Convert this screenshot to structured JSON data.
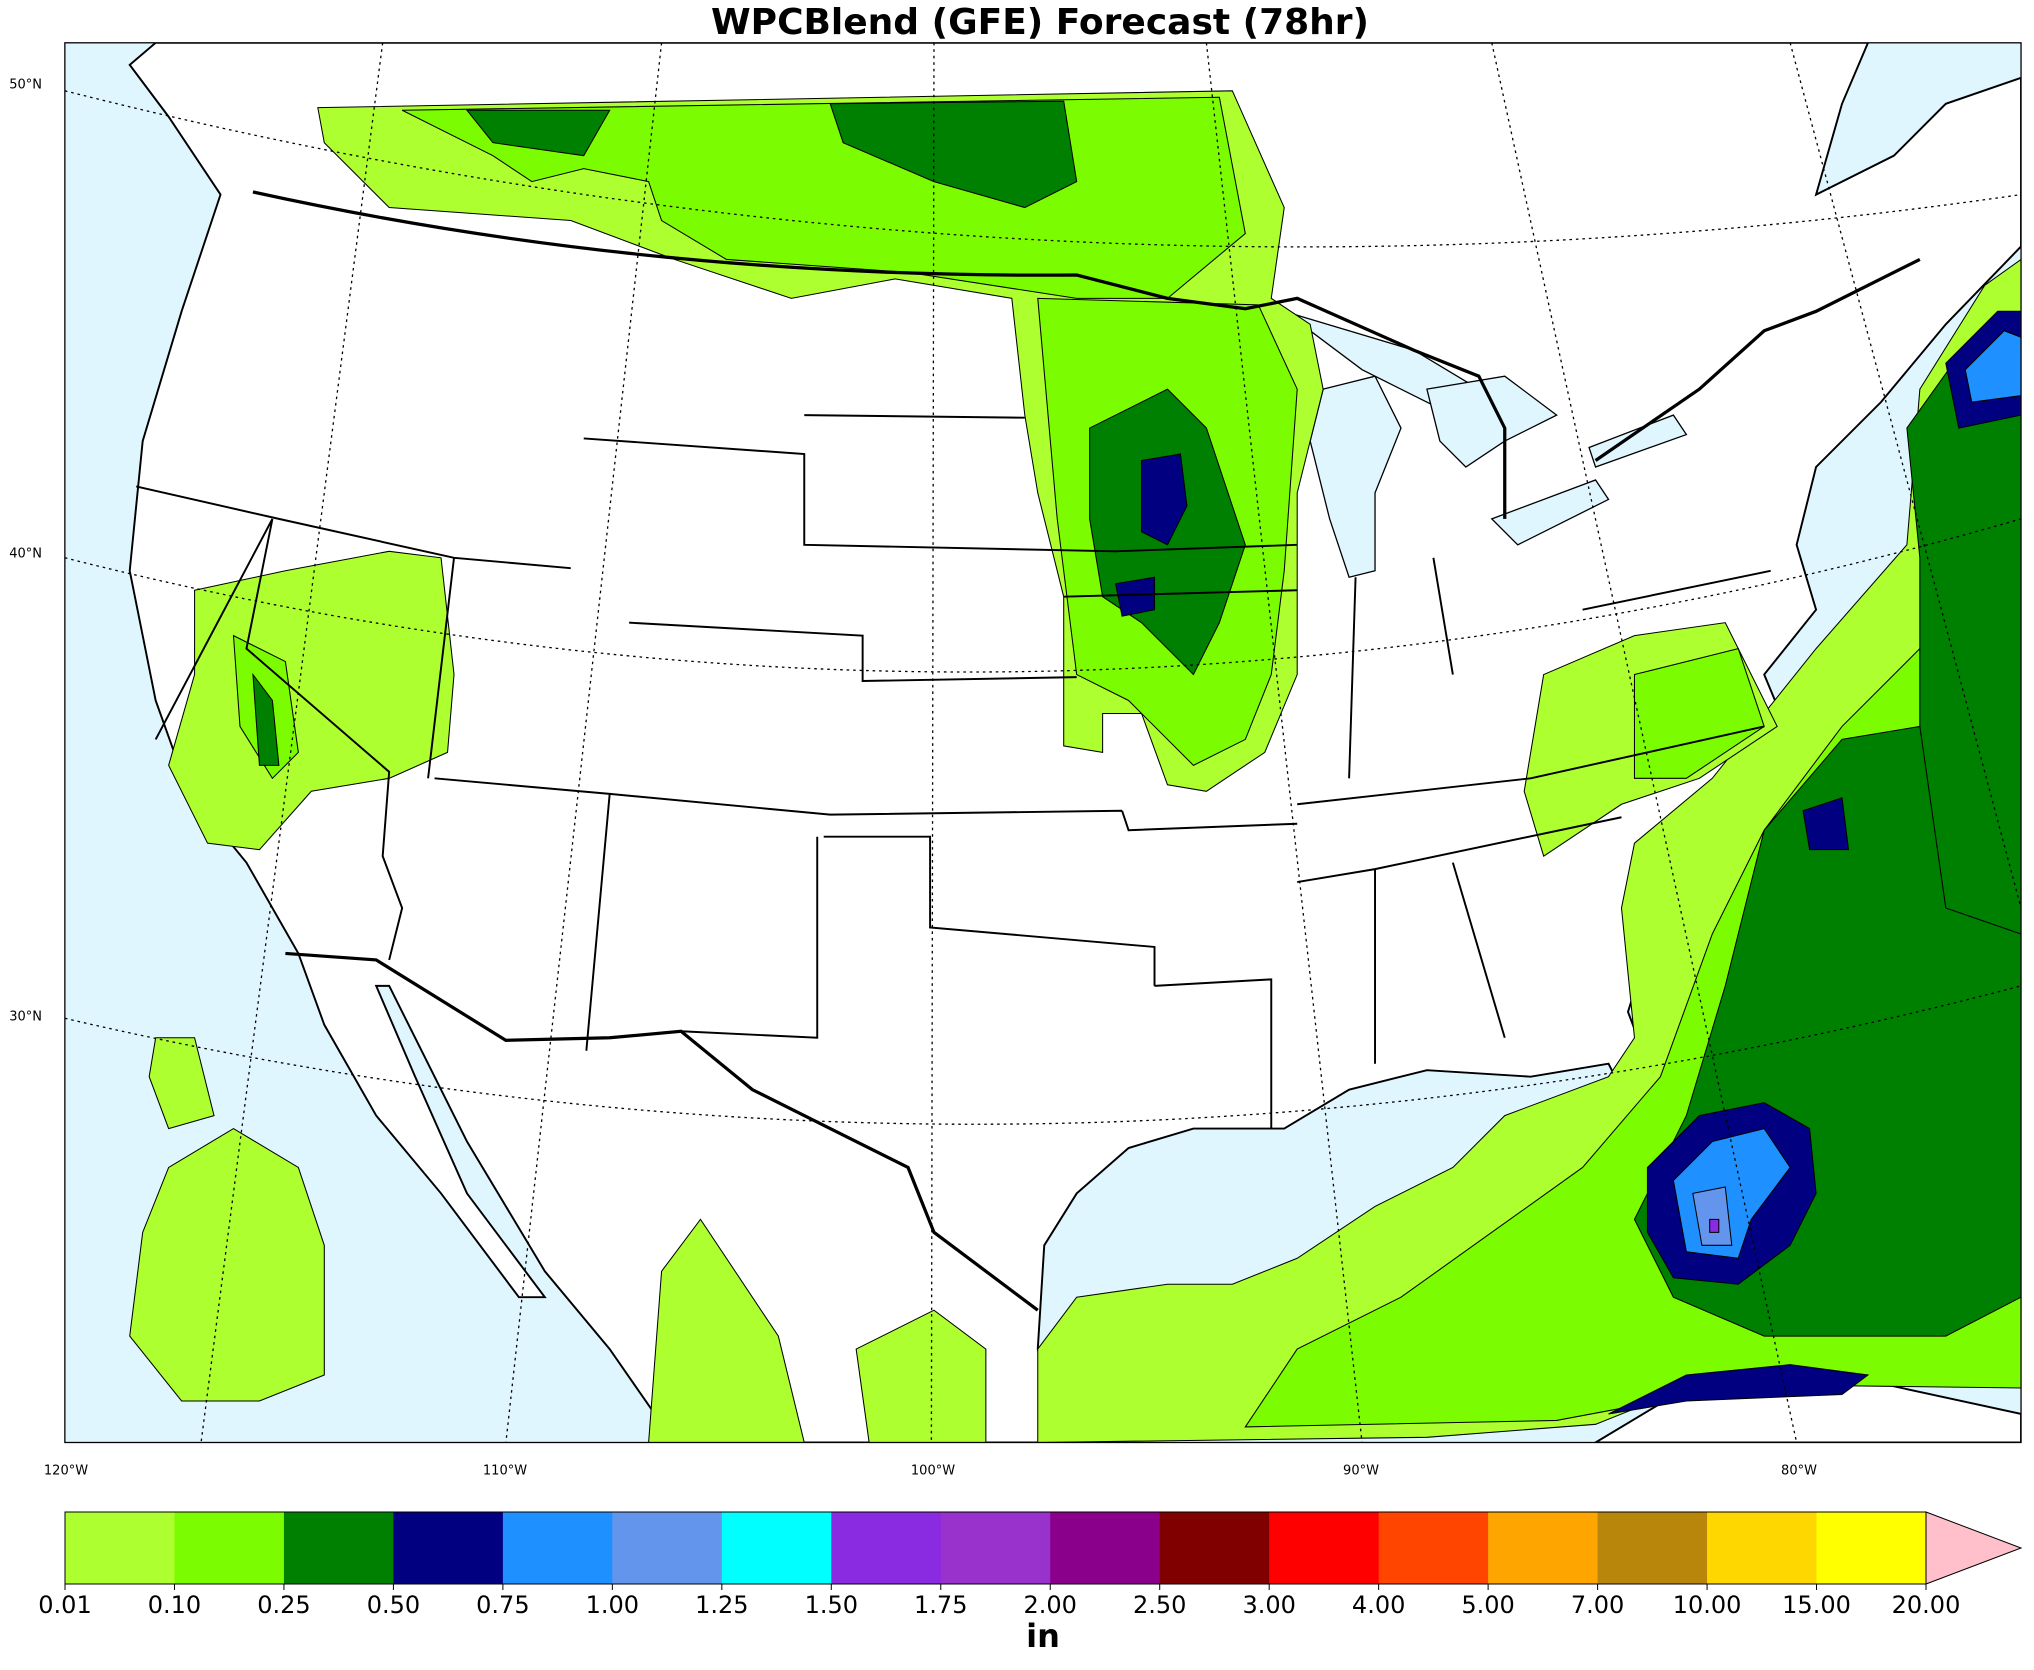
{
  "title": "WPCBlend (GFE) Forecast (78hr)",
  "map": {
    "lat_labels": [
      "50°N",
      "40°N",
      "30°N"
    ],
    "lon_labels": [
      "120°W",
      "110°W",
      "100°W",
      "90°W",
      "80°W"
    ]
  },
  "colorbar": {
    "ticks": [
      "0.01",
      "0.10",
      "0.25",
      "0.50",
      "0.75",
      "1.00",
      "1.25",
      "1.50",
      "1.75",
      "2.00",
      "2.50",
      "3.00",
      "4.00",
      "5.00",
      "7.00",
      "10.00",
      "15.00",
      "20.00"
    ],
    "colors": [
      "#adff2f",
      "#7cfc00",
      "#008000",
      "#000080",
      "#1e90ff",
      "#6495ed",
      "#00ffff",
      "#8a2be2",
      "#9932cc",
      "#8b008b",
      "#800000",
      "#ff0000",
      "#ff4500",
      "#ffa500",
      "#b8860b",
      "#ffd700",
      "#ffff00"
    ],
    "extend_color": "#ffc0cb",
    "unit": "in"
  }
}
